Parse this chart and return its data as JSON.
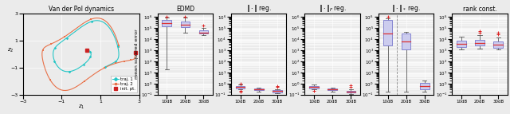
{
  "fig_width": 6.4,
  "fig_height": 1.43,
  "dpi": 100,
  "left_panel": {
    "title": "Van der Pol dynamics",
    "xlabel": "z_1",
    "ylabel": "z_2",
    "xlim": [
      -3,
      3
    ],
    "ylim": [
      -3,
      3
    ],
    "traj1_color": "#26C6C6",
    "traj2_color": "#E8724A",
    "init_color": "#CC2222",
    "xticks": [
      -3,
      -1,
      1,
      3
    ],
    "yticks": [
      -3,
      -1,
      1,
      3
    ]
  },
  "ylim_all": [
    -1,
    6.3
  ],
  "box_panels": [
    {
      "title": "EDMD",
      "show_ylabel": true,
      "has_dashed_sep": false,
      "groups": [
        {
          "label": "10dB",
          "whisker_lo_log": 1.3,
          "whisker_hi_log": 5.95,
          "q1_log": 5.15,
          "q3_log": 5.72,
          "median_log": 5.42,
          "fliers_hi_log": [
            6.05
          ],
          "fliers_lo_log": []
        },
        {
          "label": "20dB",
          "whisker_lo_log": 4.55,
          "whisker_hi_log": 5.92,
          "q1_log": 5.08,
          "q3_log": 5.62,
          "median_log": 5.32,
          "fliers_hi_log": [
            6.0
          ],
          "fliers_lo_log": []
        },
        {
          "label": "30dB",
          "whisker_lo_log": 4.35,
          "whisker_hi_log": 5.05,
          "q1_log": 4.48,
          "q3_log": 4.82,
          "median_log": 4.62,
          "fliers_hi_log": [
            5.25
          ],
          "fliers_lo_log": []
        }
      ]
    },
    {
      "title": "|| . || reg.",
      "show_ylabel": false,
      "has_dashed_sep": false,
      "groups": [
        {
          "label": "10dB",
          "whisker_lo_log": -0.55,
          "whisker_hi_log": -0.1,
          "q1_log": -0.45,
          "q3_log": -0.22,
          "median_log": -0.32,
          "fliers_hi_log": [
            -0.05
          ],
          "fliers_lo_log": [
            -0.65,
            -0.7
          ]
        },
        {
          "label": "20dB",
          "whisker_lo_log": -0.72,
          "whisker_hi_log": -0.38,
          "q1_log": -0.62,
          "q3_log": -0.48,
          "median_log": -0.54,
          "fliers_hi_log": [],
          "fliers_lo_log": []
        },
        {
          "label": "30dB",
          "whisker_lo_log": -0.88,
          "whisker_hi_log": -0.52,
          "q1_log": -0.78,
          "q3_log": -0.6,
          "median_log": -0.68,
          "fliers_hi_log": [
            -0.3,
            -0.2
          ],
          "fliers_lo_log": []
        }
      ]
    },
    {
      "title": "|| . ||_F reg.",
      "show_ylabel": false,
      "has_dashed_sep": false,
      "groups": [
        {
          "label": "10dB",
          "whisker_lo_log": -0.55,
          "whisker_hi_log": -0.1,
          "q1_log": -0.45,
          "q3_log": -0.22,
          "median_log": -0.32,
          "fliers_hi_log": [],
          "fliers_lo_log": [
            -0.65
          ]
        },
        {
          "label": "20dB",
          "whisker_lo_log": -0.72,
          "whisker_hi_log": -0.38,
          "q1_log": -0.62,
          "q3_log": -0.48,
          "median_log": -0.54,
          "fliers_hi_log": [],
          "fliers_lo_log": []
        },
        {
          "label": "30dB",
          "whisker_lo_log": -0.92,
          "whisker_hi_log": -0.55,
          "q1_log": -0.82,
          "q3_log": -0.63,
          "median_log": -0.72,
          "fliers_hi_log": [
            -0.3,
            -0.15
          ],
          "fliers_lo_log": []
        }
      ]
    },
    {
      "title": "|| . ||_* reg.",
      "show_ylabel": false,
      "has_dashed_sep": true,
      "groups": [
        {
          "label": "10dB",
          "whisker_lo_log": -0.7,
          "whisker_hi_log": 5.85,
          "q1_log": 3.4,
          "q3_log": 5.75,
          "median_log": 4.5,
          "fliers_hi_log": [
            6.05
          ],
          "fliers_lo_log": []
        },
        {
          "label": "20dB",
          "whisker_lo_log": -0.7,
          "whisker_hi_log": 4.65,
          "q1_log": 3.1,
          "q3_log": 4.48,
          "median_log": 3.78,
          "fliers_hi_log": [],
          "fliers_lo_log": []
        },
        {
          "label": "30dB",
          "whisker_lo_log": -0.7,
          "whisker_hi_log": 0.3,
          "q1_log": -0.5,
          "q3_log": 0.08,
          "median_log": -0.22,
          "fliers_hi_log": [],
          "fliers_lo_log": []
        }
      ]
    },
    {
      "title": "rank const.",
      "show_ylabel": false,
      "has_dashed_sep": false,
      "groups": [
        {
          "label": "10dB",
          "whisker_lo_log": 3.05,
          "whisker_hi_log": 4.25,
          "q1_log": 3.32,
          "q3_log": 3.88,
          "median_log": 3.58,
          "fliers_hi_log": [],
          "fliers_lo_log": []
        },
        {
          "label": "20dB",
          "whisker_lo_log": 3.12,
          "whisker_hi_log": 4.35,
          "q1_log": 3.42,
          "q3_log": 3.95,
          "median_log": 3.65,
          "fliers_hi_log": [
            4.55,
            4.75
          ],
          "fliers_lo_log": []
        },
        {
          "label": "30dB",
          "whisker_lo_log": 3.05,
          "whisker_hi_log": 4.15,
          "q1_log": 3.22,
          "q3_log": 3.82,
          "median_log": 3.52,
          "fliers_hi_log": [
            4.45,
            4.6
          ],
          "fliers_lo_log": []
        }
      ]
    }
  ],
  "box_color": "#CCCCEE",
  "box_edge_color": "#7777CC",
  "median_color": "#DD3333",
  "whisker_color": "#555555",
  "facecolor": "#EBEBEB",
  "grid_color": "#FFFFFF"
}
